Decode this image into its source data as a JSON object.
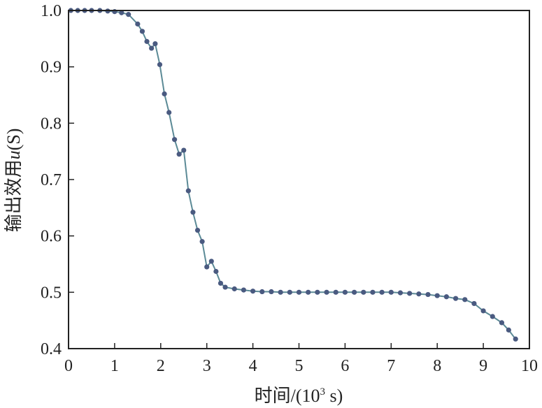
{
  "chart_data": {
    "type": "line",
    "title": "",
    "xlabel_main": "时间/(10",
    "xlabel_sup": "3",
    "xlabel_end": " s)",
    "ylabel_main": "输出效用",
    "ylabel_var": "u",
    "ylabel_arg": "(S)",
    "xlim": [
      0,
      10
    ],
    "ylim": [
      0.4,
      1.0
    ],
    "xticks": [
      "0",
      "1",
      "2",
      "3",
      "4",
      "5",
      "6",
      "7",
      "8",
      "9",
      "10"
    ],
    "yticks": [
      "0.4",
      "0.5",
      "0.6",
      "0.7",
      "0.8",
      "0.9",
      "1.0"
    ],
    "grid": false,
    "legend": "none",
    "line_color": "#5b8a96",
    "marker_color": "#4a5a80",
    "series": [
      {
        "x": [
          0.05,
          0.2,
          0.35,
          0.5,
          0.68,
          0.85,
          1.0,
          1.15,
          1.3,
          1.5,
          1.6,
          1.7,
          1.8,
          1.88,
          1.98,
          2.08,
          2.18,
          2.3,
          2.4,
          2.5,
          2.6,
          2.7,
          2.8,
          2.9,
          3.0,
          3.1,
          3.2,
          3.3,
          3.4,
          3.6,
          3.8,
          4.0,
          4.2,
          4.4,
          4.6,
          4.8,
          5.0,
          5.2,
          5.4,
          5.6,
          5.8,
          6.0,
          6.2,
          6.4,
          6.6,
          6.8,
          7.0,
          7.2,
          7.4,
          7.6,
          7.8,
          8.0,
          8.2,
          8.4,
          8.6,
          8.8,
          9.0,
          9.2,
          9.4,
          9.55,
          9.7
        ],
        "y": [
          1.0,
          1.0,
          1.0,
          1.0,
          1.0,
          0.999,
          0.998,
          0.996,
          0.993,
          0.976,
          0.963,
          0.945,
          0.933,
          0.941,
          0.904,
          0.852,
          0.819,
          0.771,
          0.745,
          0.752,
          0.68,
          0.642,
          0.61,
          0.59,
          0.545,
          0.555,
          0.537,
          0.516,
          0.509,
          0.506,
          0.504,
          0.502,
          0.501,
          0.501,
          0.5,
          0.5,
          0.5,
          0.5,
          0.5,
          0.5,
          0.5,
          0.5,
          0.5,
          0.5,
          0.5,
          0.5,
          0.5,
          0.499,
          0.498,
          0.497,
          0.496,
          0.494,
          0.492,
          0.489,
          0.487,
          0.48,
          0.467,
          0.457,
          0.446,
          0.433,
          0.417
        ]
      }
    ]
  }
}
